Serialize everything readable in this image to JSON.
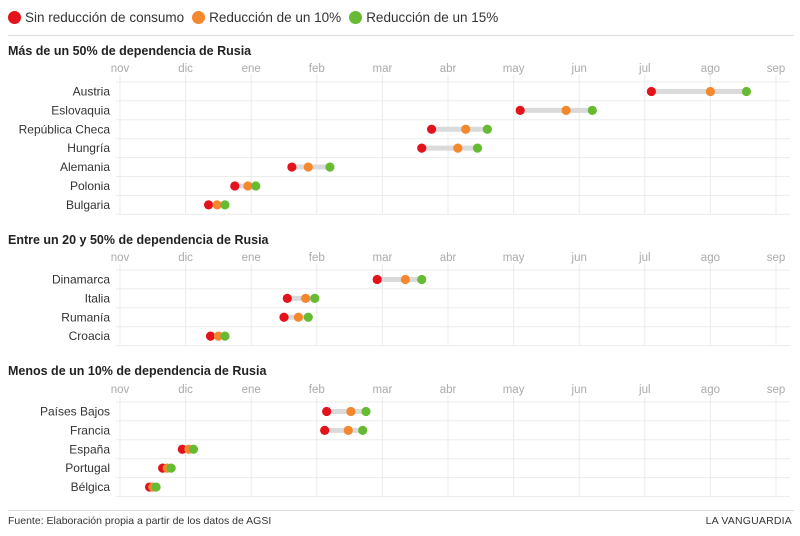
{
  "legend": [
    {
      "label": "Sin reducción de consumo",
      "color": "#e3121b"
    },
    {
      "label": "Reducción de un 10%",
      "color": "#f5872d"
    },
    {
      "label": "Reducción de un 15%",
      "color": "#66bb33"
    }
  ],
  "footer": {
    "source": "Fuente: Elaboración propia a partir de los datos de AGSI",
    "brand": "LA VANGUARDIA"
  },
  "chart_data": {
    "type": "dot-range",
    "x_unit": "month",
    "months": [
      "nov",
      "dic",
      "ene",
      "feb",
      "mar",
      "abr",
      "may",
      "jun",
      "jul",
      "ago",
      "sep"
    ],
    "xlim": [
      0,
      10
    ],
    "grid": true,
    "legend_position": "top-left",
    "series_names": [
      "Sin reducción de consumo",
      "Reducción de un 10%",
      "Reducción de un 15%"
    ],
    "panels": [
      {
        "title": "Más de un 50% de dependencia de Rusia",
        "rows": [
          {
            "country": "Austria",
            "values": [
              8.1,
              9.0,
              9.55
            ]
          },
          {
            "country": "Eslovaquia",
            "values": [
              6.1,
              6.8,
              7.2
            ]
          },
          {
            "country": "República Checa",
            "values": [
              4.75,
              5.27,
              5.6
            ]
          },
          {
            "country": "Hungría",
            "values": [
              4.6,
              5.15,
              5.45
            ]
          },
          {
            "country": "Alemania",
            "values": [
              2.62,
              2.87,
              3.2
            ]
          },
          {
            "country": "Polonia",
            "values": [
              1.75,
              1.95,
              2.07
            ]
          },
          {
            "country": "Bulgaria",
            "values": [
              1.35,
              1.48,
              1.6
            ]
          }
        ]
      },
      {
        "title": "Entre un 20 y 50% de dependencia de Rusia",
        "rows": [
          {
            "country": "Dinamarca",
            "values": [
              3.92,
              4.35,
              4.6
            ]
          },
          {
            "country": "Italia",
            "values": [
              2.55,
              2.83,
              2.97
            ]
          },
          {
            "country": "Rumanía",
            "values": [
              2.5,
              2.72,
              2.87
            ]
          },
          {
            "country": "Croacia",
            "values": [
              1.38,
              1.5,
              1.6
            ]
          }
        ]
      },
      {
        "title": "Menos de un 10% de dependencia de Rusia",
        "rows": [
          {
            "country": "Países Bajos",
            "values": [
              3.15,
              3.52,
              3.75
            ]
          },
          {
            "country": "Francia",
            "values": [
              3.12,
              3.48,
              3.7
            ]
          },
          {
            "country": "España",
            "values": [
              0.95,
              1.05,
              1.12
            ]
          },
          {
            "country": "Portugal",
            "values": [
              0.65,
              0.72,
              0.78
            ]
          },
          {
            "country": "Bélgica",
            "values": [
              0.45,
              0.5,
              0.55
            ]
          }
        ]
      }
    ]
  }
}
